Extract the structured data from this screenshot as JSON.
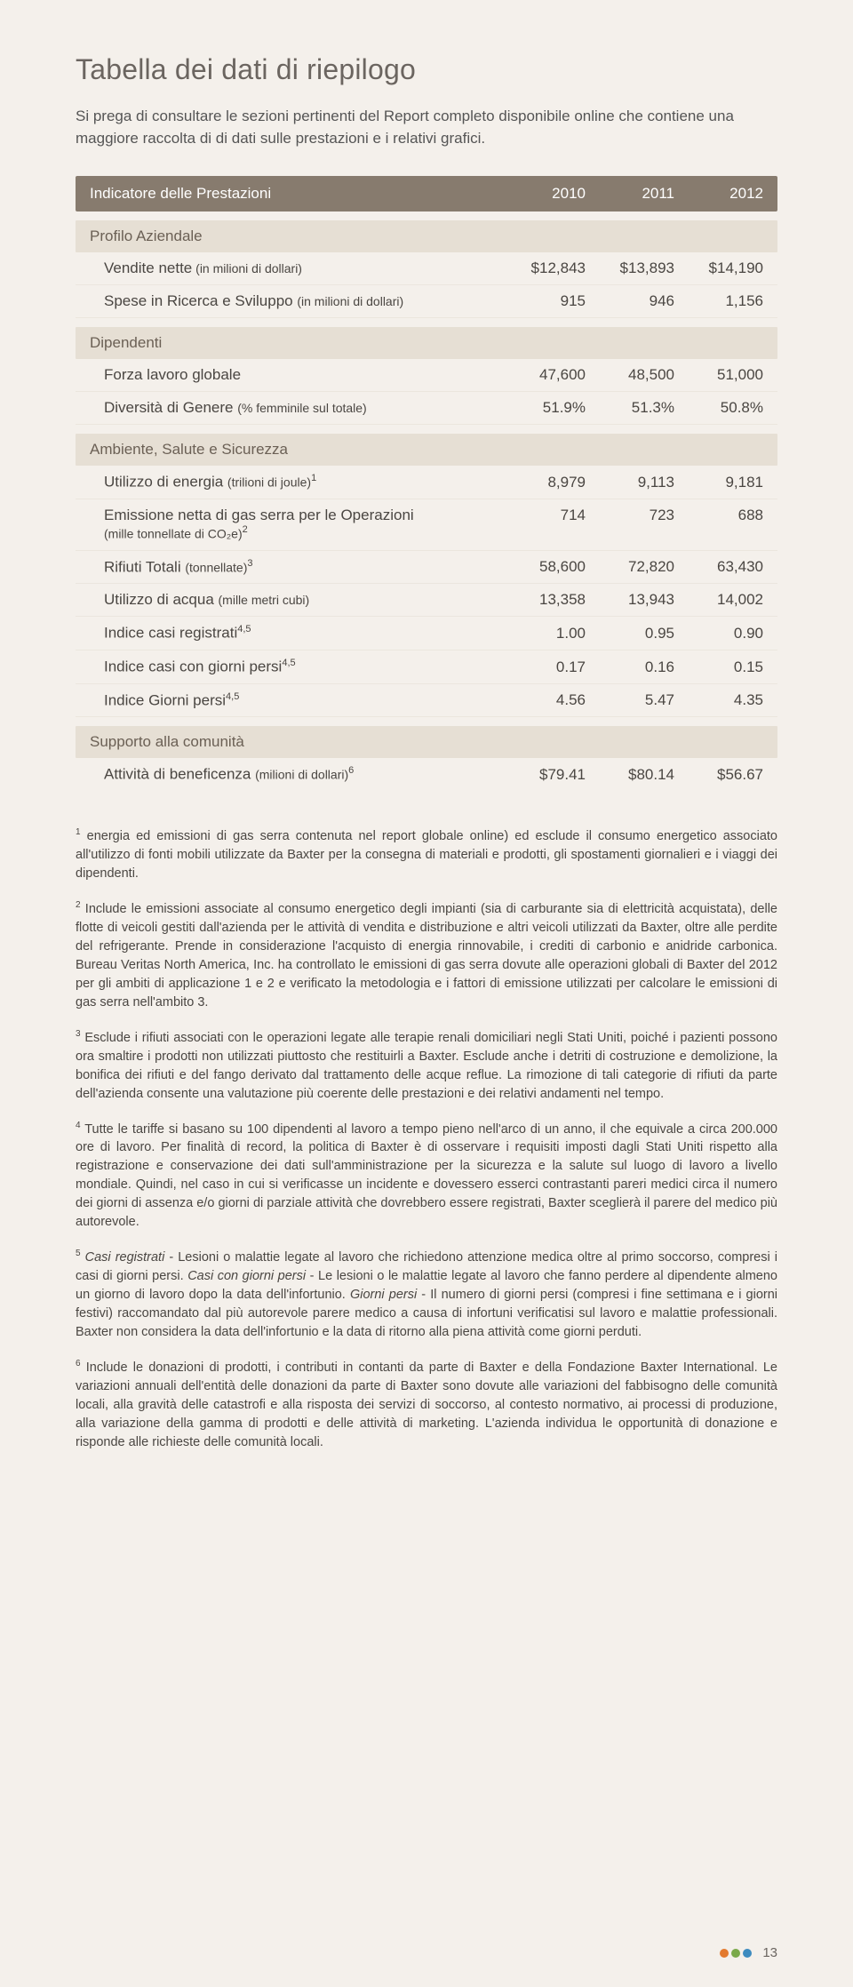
{
  "title": "Tabella dei dati di riepilogo",
  "intro": "Si prega di consultare le sezioni pertinenti del Report completo disponibile online che contiene una maggiore raccolta di di dati sulle prestazioni e i relativi grafici.",
  "header": {
    "label": "Indicatore delle Prestazioni",
    "years": [
      "2010",
      "2011",
      "2012"
    ]
  },
  "sections": [
    {
      "name": "Profilo Aziendale",
      "rows": [
        {
          "label": "Vendite nette",
          "sub": " (in milioni di dollari)",
          "sup": "",
          "vals": [
            "$12,843",
            "$13,893",
            "$14,190"
          ]
        },
        {
          "label": "Spese in Ricerca e Sviluppo ",
          "sub": " (in milioni di dollari)",
          "sup": "",
          "vals": [
            "915",
            "946",
            "1,156"
          ]
        }
      ]
    },
    {
      "name": "Dipendenti",
      "rows": [
        {
          "label": "Forza lavoro globale",
          "sub": "",
          "sup": "",
          "vals": [
            "47,600",
            "48,500",
            "51,000"
          ]
        },
        {
          "label": "Diversità di Genere ",
          "sub": "(% femminile sul totale)",
          "sup": "",
          "vals": [
            "51.9%",
            "51.3%",
            "50.8%"
          ]
        }
      ]
    },
    {
      "name": "Ambiente, Salute e Sicurezza",
      "rows": [
        {
          "label": "Utilizzo di energia ",
          "sub": "(trilioni di joule)",
          "sup": "1",
          "vals": [
            "8,979",
            "9,113",
            "9,181"
          ]
        },
        {
          "label": "Emissione netta di gas serra per le Operazioni",
          "sub2": "(mille tonnellate di CO₂e)",
          "sup": "2",
          "vals": [
            "714",
            "723",
            "688"
          ],
          "twoLine": true
        },
        {
          "label": "Rifiuti Totali ",
          "sub": "(tonnellate)",
          "sup": "3",
          "vals": [
            "58,600",
            "72,820",
            "63,430"
          ]
        },
        {
          "label": "Utilizzo di acqua ",
          "sub": "(mille metri cubi)",
          "sup": "",
          "vals": [
            "13,358",
            "13,943",
            "14,002"
          ]
        },
        {
          "label": "Indice casi registrati",
          "sub": "",
          "sup": "4,5",
          "vals": [
            "1.00",
            "0.95",
            "0.90"
          ]
        },
        {
          "label": "Indice casi con giorni persi",
          "sub": "",
          "sup": "4,5",
          "vals": [
            "0.17",
            "0.16",
            "0.15"
          ]
        },
        {
          "label": "Indice Giorni persi",
          "sub": "",
          "sup": "4,5",
          "vals": [
            "4.56",
            "5.47",
            "4.35"
          ]
        }
      ]
    },
    {
      "name": "Supporto alla comunità",
      "rows": [
        {
          "label": "Attività di beneficenza ",
          "sub": "(milioni di dollari)",
          "sup": "6",
          "vals": [
            "$79.41",
            "$80.14",
            "$56.67"
          ]
        }
      ]
    }
  ],
  "footnotes": [
    {
      "sup": "1",
      "text": " energia ed emissioni di gas serra contenuta nel report globale online) ed esclude il consumo energetico associato all'utilizzo di fonti mobili utilizzate da Baxter per la consegna di materiali e prodotti, gli spostamenti giornalieri e i viaggi dei dipendenti."
    },
    {
      "sup": "2",
      "text": " Include le emissioni associate al consumo energetico degli impianti (sia di carburante sia di elettricità acquistata), delle flotte di veicoli gestiti dall'azienda per le attività di vendita e distribuzione e altri veicoli utilizzati da Baxter, oltre alle perdite del refrigerante. Prende in considerazione l'acquisto di energia rinnovabile, i crediti di carbonio e anidride carbonica. Bureau Veritas North America, Inc. ha controllato le emissioni di gas serra dovute alle operazioni globali di Baxter del 2012 per gli ambiti di applicazione 1 e 2 e verificato la metodologia e i fattori di emissione utilizzati per calcolare le emissioni di gas serra nell'ambito 3."
    },
    {
      "sup": "3",
      "text": " Esclude i rifiuti associati con le operazioni legate alle terapie renali domiciliari negli Stati Uniti, poiché i pazienti possono ora smaltire i prodotti non utilizzati piuttosto che restituirli a Baxter. Esclude anche i detriti di costruzione e demolizione, la bonifica dei rifiuti e del fango derivato dal trattamento delle acque reflue. La rimozione di tali categorie di rifiuti da parte dell'azienda consente una valutazione più coerente delle prestazioni e dei relativi andamenti nel tempo."
    },
    {
      "sup": "4",
      "text": " Tutte le tariffe si basano su 100 dipendenti al lavoro a tempo pieno nell'arco di un anno, il che equivale a circa 200.000 ore di lavoro. Per finalità di record, la politica di Baxter è di osservare i requisiti imposti dagli Stati Uniti rispetto alla registrazione e conservazione dei dati sull'amministrazione per la sicurezza e la salute sul luogo di lavoro a livello mondiale. Quindi, nel caso in cui si verificasse un incidente e dovessero esserci contrastanti pareri medici circa il numero dei giorni di assenza e/o giorni di parziale attività che dovrebbero essere registrati, Baxter sceglierà il parere del medico più autorevole."
    },
    {
      "sup": "5",
      "html": "<em>Casi registrati</em> - Lesioni o malattie legate al lavoro che richiedono attenzione medica oltre al primo soccorso, compresi i casi di giorni persi. <em>Casi con giorni persi</em> - Le lesioni o le malattie legate al lavoro che fanno perdere al dipendente almeno un giorno di lavoro dopo la data dell'infortunio. <em>Giorni persi</em> - Il numero di giorni persi (compresi i fine settimana e i giorni festivi) raccomandato dal più autorevole parere medico a causa di infortuni verificatisi sul lavoro e malattie professionali. Baxter non considera la data dell'infortunio e la data di ritorno alla piena attività come giorni perduti."
    },
    {
      "sup": "6",
      "text": " Include le donazioni di prodotti, i contributi in contanti da parte di Baxter e della Fondazione Baxter International. Le variazioni annuali dell'entità delle donazioni da parte di Baxter sono dovute alle variazioni del fabbisogno delle comunità locali, alla gravità delle catastrofi e alla risposta dei servizi di soccorso, al contesto normativo, ai processi di produzione, alla variazione della gamma di prodotti e delle attività di marketing. L'azienda individua le opportunità di donazione e risponde alle richieste delle comunità locali."
    }
  ],
  "footer": {
    "dot_colors": [
      "#e37a2e",
      "#7aa94a",
      "#3d8bbf"
    ],
    "page_number": "13"
  },
  "colors": {
    "header_bg": "#877b6e",
    "section_bg": "#e6dfd4",
    "page_bg": "#f4f0eb"
  }
}
